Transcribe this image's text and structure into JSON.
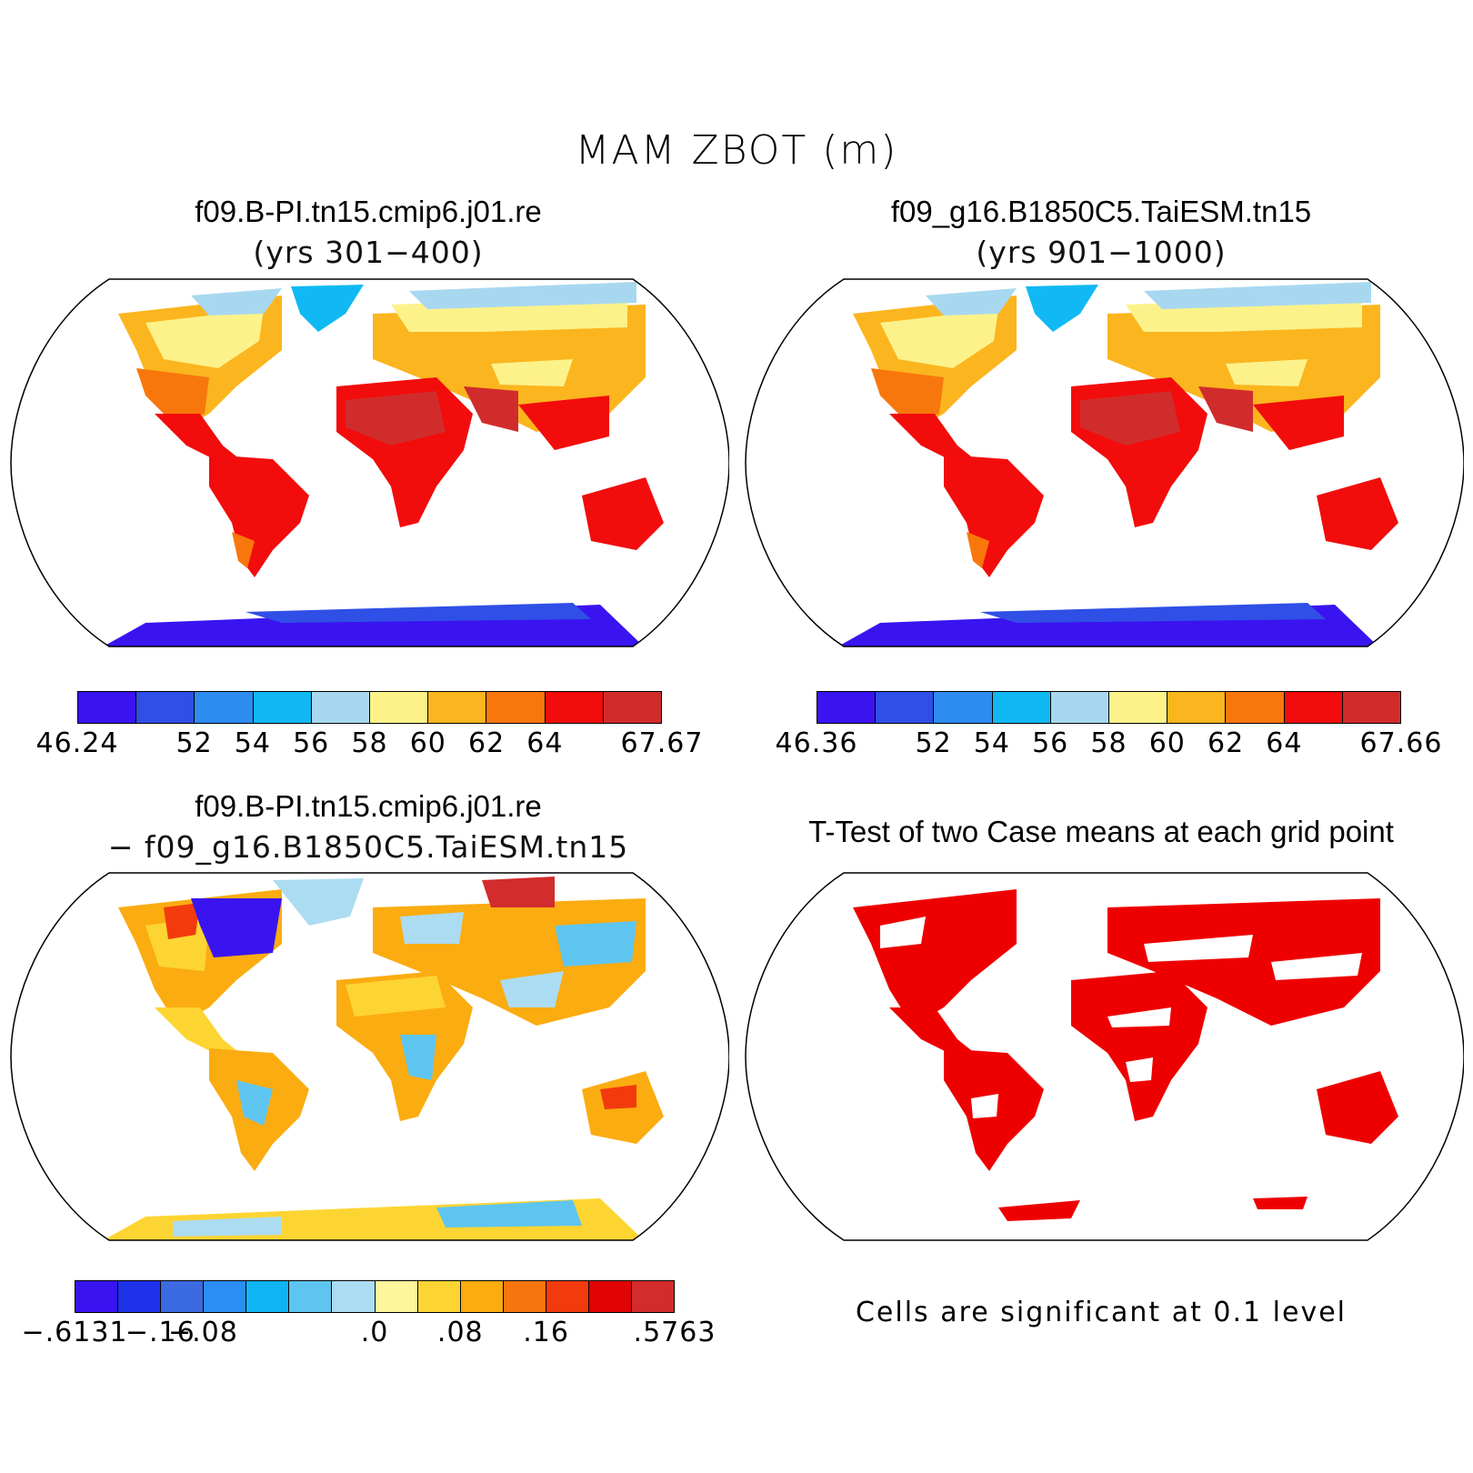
{
  "title": "MAM ZBOT (m)",
  "panels": {
    "case1": {
      "title": "f09.B-PI.tn15.cmip6.j01.re",
      "subtitle": "(yrs 301−400)",
      "colorbar": {
        "colors": [
          "#3a14f0",
          "#2f4fe6",
          "#2d8cf0",
          "#10b9f3",
          "#a8d8f0",
          "#fdf28a",
          "#fbb51e",
          "#f8770c",
          "#f20c0c",
          "#d12c2c"
        ],
        "ticks": [
          "46.24",
          "",
          "52",
          "54",
          "56",
          "58",
          "60",
          "62",
          "64",
          "",
          "67.67"
        ]
      }
    },
    "case2": {
      "title": "f09_g16.B1850C5.TaiESM.tn15",
      "subtitle": "(yrs 901−1000)",
      "colorbar": {
        "colors": [
          "#3a14f0",
          "#2f4fe6",
          "#2d8cf0",
          "#10b9f3",
          "#a8d8f0",
          "#fdf28a",
          "#fbb51e",
          "#f8770c",
          "#f20c0c",
          "#d12c2c"
        ],
        "ticks": [
          "46.36",
          "",
          "52",
          "54",
          "56",
          "58",
          "60",
          "62",
          "64",
          "",
          "67.66"
        ]
      }
    },
    "diff": {
      "title": "f09.B-PI.tn15.cmip6.j01.re",
      "subtitle": "− f09_g16.B1850C5.TaiESM.tn15",
      "colorbar": {
        "colors": [
          "#3a14f0",
          "#1e32ea",
          "#3c6ae0",
          "#2b8ef2",
          "#0eb4f4",
          "#5ec5f0",
          "#acdcf2",
          "#fff59a",
          "#fdd532",
          "#fbac10",
          "#f7750e",
          "#f23a0c",
          "#e00404",
          "#d22c2c"
        ],
        "ticks": [
          "−.6131",
          "",
          "−.16",
          "−.08",
          "",
          "",
          "",
          ".0",
          "",
          ".08",
          "",
          ".16",
          "",
          "",
          ".5763"
        ]
      }
    },
    "ttest": {
      "title": "T-Test of two Case means at each grid point",
      "note": "Cells are significant at 0.1 level",
      "color": "#ee0000"
    }
  }
}
